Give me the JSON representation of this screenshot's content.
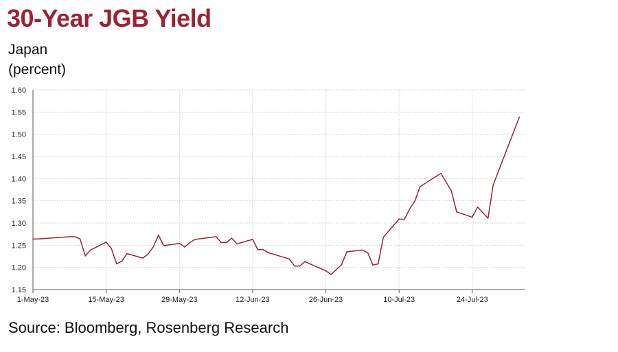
{
  "chart_data": {
    "type": "line",
    "title": "30-Year JGB Yield",
    "subtitle_lines": [
      "Japan",
      "(percent)"
    ],
    "source": "Source: Bloomberg, Rosenberg Research",
    "ylim": [
      1.15,
      1.6
    ],
    "yticks": [
      "1.15",
      "1.20",
      "1.25",
      "1.30",
      "1.35",
      "1.40",
      "1.45",
      "1.50",
      "1.55",
      "1.60"
    ],
    "xlim": [
      "2023-05-01",
      "2023-08-03"
    ],
    "xticks": [
      {
        "label": "1-May-23",
        "date": "2023-05-01"
      },
      {
        "label": "15-May-23",
        "date": "2023-05-15"
      },
      {
        "label": "29-May-23",
        "date": "2023-05-29"
      },
      {
        "label": "12-Jun-23",
        "date": "2023-06-12"
      },
      {
        "label": "26-Jun-23",
        "date": "2023-06-26"
      },
      {
        "label": "10-Jul-23",
        "date": "2023-07-10"
      },
      {
        "label": "24-Jul-23",
        "date": "2023-07-24"
      }
    ],
    "grid": true,
    "line_color": "#9c2235",
    "series": [
      {
        "points": [
          [
            "2023-05-01",
            1.264
          ],
          [
            "2023-05-02",
            1.264
          ],
          [
            "2023-05-08",
            1.269
          ],
          [
            "2023-05-09",
            1.269
          ],
          [
            "2023-05-10",
            1.264
          ],
          [
            "2023-05-11",
            1.226
          ],
          [
            "2023-05-12",
            1.239
          ],
          [
            "2023-05-15",
            1.257
          ],
          [
            "2023-05-16",
            1.242
          ],
          [
            "2023-05-17",
            1.208
          ],
          [
            "2023-05-18",
            1.214
          ],
          [
            "2023-05-19",
            1.231
          ],
          [
            "2023-05-22",
            1.221
          ],
          [
            "2023-05-23",
            1.23
          ],
          [
            "2023-05-24",
            1.246
          ],
          [
            "2023-05-25",
            1.273
          ],
          [
            "2023-05-26",
            1.249
          ],
          [
            "2023-05-29",
            1.254
          ],
          [
            "2023-05-30",
            1.246
          ],
          [
            "2023-05-31",
            1.256
          ],
          [
            "2023-06-01",
            1.263
          ],
          [
            "2023-06-05",
            1.269
          ],
          [
            "2023-06-06",
            1.256
          ],
          [
            "2023-06-07",
            1.256
          ],
          [
            "2023-06-08",
            1.266
          ],
          [
            "2023-06-09",
            1.253
          ],
          [
            "2023-06-12",
            1.263
          ],
          [
            "2023-06-13",
            1.24
          ],
          [
            "2023-06-14",
            1.24
          ],
          [
            "2023-06-15",
            1.233
          ],
          [
            "2023-06-19",
            1.219
          ],
          [
            "2023-06-20",
            1.203
          ],
          [
            "2023-06-21",
            1.203
          ],
          [
            "2023-06-22",
            1.213
          ],
          [
            "2023-06-26",
            1.192
          ],
          [
            "2023-06-27",
            1.184
          ],
          [
            "2023-06-29",
            1.206
          ],
          [
            "2023-06-30",
            1.235
          ],
          [
            "2023-07-03",
            1.239
          ],
          [
            "2023-07-04",
            1.233
          ],
          [
            "2023-07-05",
            1.205
          ],
          [
            "2023-07-06",
            1.208
          ],
          [
            "2023-07-07",
            1.268
          ],
          [
            "2023-07-10",
            1.309
          ],
          [
            "2023-07-11",
            1.308
          ],
          [
            "2023-07-12",
            1.331
          ],
          [
            "2023-07-13",
            1.349
          ],
          [
            "2023-07-14",
            1.382
          ],
          [
            "2023-07-18",
            1.412
          ],
          [
            "2023-07-20",
            1.372
          ],
          [
            "2023-07-21",
            1.325
          ],
          [
            "2023-07-24",
            1.313
          ],
          [
            "2023-07-25",
            1.336
          ],
          [
            "2023-07-27",
            1.311
          ],
          [
            "2023-07-28",
            1.386
          ],
          [
            "2023-08-02",
            1.539
          ]
        ]
      }
    ]
  }
}
